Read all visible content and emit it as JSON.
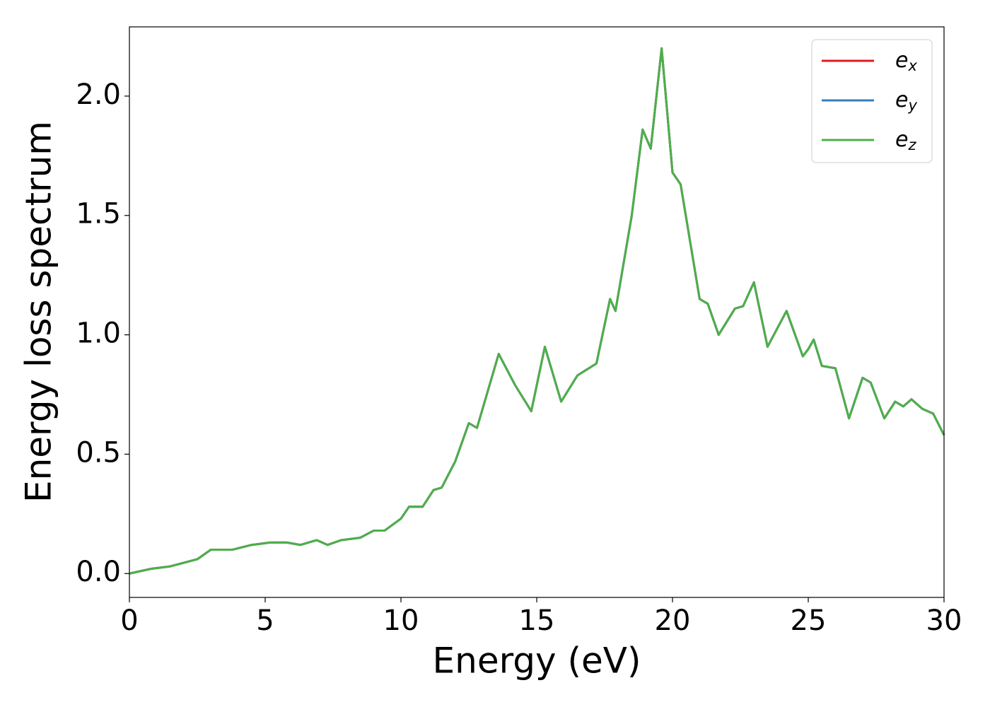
{
  "chart_data": {
    "type": "line",
    "xlabel": "Energy (eV)",
    "ylabel": "Energy loss spectrum",
    "x": [
      0,
      0.8,
      1.5,
      2.5,
      3.0,
      3.8,
      4.5,
      5.2,
      5.8,
      6.3,
      6.9,
      7.3,
      7.8,
      8.5,
      9.0,
      9.4,
      10.0,
      10.3,
      10.8,
      11.2,
      11.5,
      12.0,
      12.5,
      12.8,
      13.6,
      14.2,
      14.8,
      15.3,
      15.9,
      16.5,
      17.2,
      17.7,
      17.9,
      18.5,
      18.9,
      19.2,
      19.6,
      20.0,
      20.3,
      21.0,
      21.3,
      21.7,
      22.3,
      22.6,
      23.0,
      23.5,
      24.2,
      24.8,
      25.0,
      25.2,
      25.5,
      26.0,
      26.5,
      27.0,
      27.3,
      27.8,
      28.2,
      28.5,
      28.8,
      29.2,
      29.6,
      30.0
    ],
    "series": [
      {
        "name": "ex",
        "color": "#e41a1c",
        "values": [
          0.0,
          0.02,
          0.03,
          0.06,
          0.1,
          0.1,
          0.12,
          0.13,
          0.13,
          0.12,
          0.14,
          0.12,
          0.14,
          0.15,
          0.18,
          0.18,
          0.23,
          0.28,
          0.28,
          0.35,
          0.36,
          0.47,
          0.63,
          0.61,
          0.92,
          0.79,
          0.68,
          0.95,
          0.72,
          0.83,
          0.88,
          1.15,
          1.1,
          1.5,
          1.86,
          1.78,
          2.2,
          1.68,
          1.63,
          1.15,
          1.13,
          1.0,
          1.11,
          1.12,
          1.22,
          0.95,
          1.1,
          0.91,
          0.94,
          0.98,
          0.87,
          0.86,
          0.65,
          0.82,
          0.8,
          0.65,
          0.72,
          0.7,
          0.73,
          0.69,
          0.67,
          0.58
        ]
      },
      {
        "name": "ey",
        "color": "#377eb8",
        "values": [
          0.0,
          0.02,
          0.03,
          0.06,
          0.1,
          0.1,
          0.12,
          0.13,
          0.13,
          0.12,
          0.14,
          0.12,
          0.14,
          0.15,
          0.18,
          0.18,
          0.23,
          0.28,
          0.28,
          0.35,
          0.36,
          0.47,
          0.63,
          0.61,
          0.92,
          0.79,
          0.68,
          0.95,
          0.72,
          0.83,
          0.88,
          1.15,
          1.1,
          1.5,
          1.86,
          1.78,
          2.2,
          1.68,
          1.63,
          1.15,
          1.13,
          1.0,
          1.11,
          1.12,
          1.22,
          0.95,
          1.1,
          0.91,
          0.94,
          0.98,
          0.87,
          0.86,
          0.65,
          0.82,
          0.8,
          0.65,
          0.72,
          0.7,
          0.73,
          0.69,
          0.67,
          0.58
        ]
      },
      {
        "name": "ez",
        "color": "#4daf4a",
        "values": [
          0.0,
          0.02,
          0.03,
          0.06,
          0.1,
          0.1,
          0.12,
          0.13,
          0.13,
          0.12,
          0.14,
          0.12,
          0.14,
          0.15,
          0.18,
          0.18,
          0.23,
          0.28,
          0.28,
          0.35,
          0.36,
          0.47,
          0.63,
          0.61,
          0.92,
          0.79,
          0.68,
          0.95,
          0.72,
          0.83,
          0.88,
          1.15,
          1.1,
          1.5,
          1.86,
          1.78,
          2.2,
          1.68,
          1.63,
          1.15,
          1.13,
          1.0,
          1.11,
          1.12,
          1.22,
          0.95,
          1.1,
          0.91,
          0.94,
          0.98,
          0.87,
          0.86,
          0.65,
          0.82,
          0.8,
          0.65,
          0.72,
          0.7,
          0.73,
          0.69,
          0.67,
          0.58
        ]
      }
    ],
    "xlim": [
      0,
      30
    ],
    "xticks": [
      0,
      5,
      10,
      15,
      20,
      25,
      30
    ],
    "ylim": [
      -0.1,
      2.29
    ],
    "yticks": [
      {
        "value": 0,
        "label": "0.0"
      },
      0.5,
      {
        "value": 1,
        "label": "1.0"
      },
      1.5,
      {
        "value": 2,
        "label": "2.0"
      }
    ],
    "grid": false,
    "legend": "upper right"
  }
}
